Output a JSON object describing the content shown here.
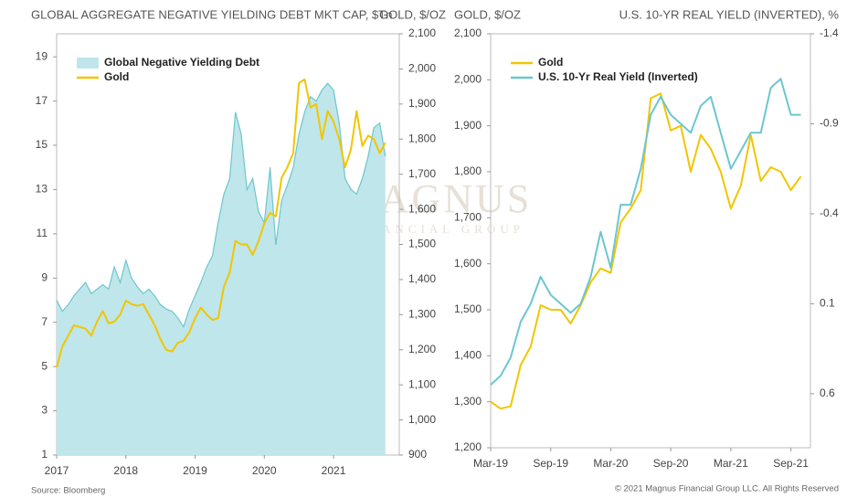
{
  "chart_data": [
    {
      "type": "line",
      "title": "GLOBAL AGGREGATE NEGATIVE YIELDING DEBT MKT CAP, $Tn",
      "y2_title": "GOLD, $/OZ",
      "x": [
        2017,
        2017.083,
        2017.167,
        2017.25,
        2017.333,
        2017.417,
        2017.5,
        2017.583,
        2017.667,
        2017.75,
        2017.833,
        2017.917,
        2018,
        2018.083,
        2018.167,
        2018.25,
        2018.333,
        2018.417,
        2018.5,
        2018.583,
        2018.667,
        2018.75,
        2018.833,
        2018.917,
        2019,
        2019.083,
        2019.167,
        2019.25,
        2019.333,
        2019.417,
        2019.5,
        2019.583,
        2019.667,
        2019.75,
        2019.833,
        2019.917,
        2020,
        2020.083,
        2020.167,
        2020.25,
        2020.333,
        2020.417,
        2020.5,
        2020.583,
        2020.667,
        2020.75,
        2020.833,
        2020.917,
        2021,
        2021.083,
        2021.167,
        2021.25,
        2021.333,
        2021.417,
        2021.5,
        2021.583,
        2021.667,
        2021.75
      ],
      "xlim": [
        2017,
        2021.95
      ],
      "xticks": [
        2017,
        2018,
        2019,
        2020,
        2021
      ],
      "ylim": [
        1,
        20.04
      ],
      "yticks": [
        1,
        3,
        5,
        7,
        9,
        11,
        13,
        15,
        17,
        19
      ],
      "y2lim": [
        900,
        2100
      ],
      "y2ticks": [
        900,
        {
          "value": 1000,
          "label": "1,000"
        },
        {
          "value": 1100,
          "label": "1,100"
        },
        {
          "value": 1200,
          "label": "1,200"
        },
        {
          "value": 1300,
          "label": "1,300"
        },
        {
          "value": 1400,
          "label": "1,400"
        },
        {
          "value": 1500,
          "label": "1,500"
        },
        {
          "value": 1600,
          "label": "1,600"
        },
        {
          "value": 1700,
          "label": "1,700"
        },
        {
          "value": 1800,
          "label": "1,800"
        },
        {
          "value": 1900,
          "label": "1,900"
        },
        {
          "value": 2000,
          "label": "2,000"
        },
        {
          "value": 2100,
          "label": "2,100"
        }
      ],
      "legend": "upper left",
      "watermark": "MAGNUS",
      "watermark_sub": "FINANCIAL GROUP",
      "series": [
        {
          "name": "Global Negative Yielding Debt",
          "color": "#bfe6ea",
          "fill": true,
          "axis": "y",
          "values": [
            8,
            7.5,
            7.8,
            8.2,
            8.5,
            8.8,
            8.3,
            8.5,
            8.7,
            8.5,
            9.5,
            8.8,
            9.8,
            9.0,
            8.6,
            8.3,
            8.5,
            8.2,
            7.8,
            7.6,
            7.5,
            7.2,
            6.8,
            7.6,
            8.2,
            8.8,
            9.5,
            10.0,
            11.5,
            12.8,
            13.5,
            16.5,
            15.5,
            13.0,
            13.5,
            12.0,
            11.5,
            14.0,
            10.5,
            12.5,
            13.2,
            14.0,
            15.5,
            16.5,
            17.2,
            17.0,
            17.5,
            17.8,
            17.5,
            16.0,
            13.5,
            13.0,
            12.8,
            13.5,
            14.5,
            15.8,
            16.0,
            14.5
          ]
        },
        {
          "name": "Gold",
          "color": "#f2c500",
          "fill": false,
          "axis": "y2",
          "values": [
            1150,
            1210,
            1240,
            1270,
            1265,
            1260,
            1240,
            1280,
            1310,
            1275,
            1280,
            1300,
            1340,
            1330,
            1325,
            1330,
            1300,
            1270,
            1230,
            1200,
            1195,
            1220,
            1225,
            1250,
            1290,
            1320,
            1300,
            1285,
            1290,
            1380,
            1420,
            1510,
            1500,
            1500,
            1470,
            1510,
            1560,
            1590,
            1580,
            1690,
            1720,
            1760,
            1960,
            1970,
            1890,
            1900,
            1800,
            1880,
            1850,
            1800,
            1720,
            1770,
            1880,
            1780,
            1810,
            1800,
            1760,
            1790
          ]
        }
      ]
    },
    {
      "type": "line",
      "y_title": "GOLD, $/OZ",
      "y2_title": "U.S. 10-YR REAL YIELD (INVERTED), %",
      "x": [
        2019.167,
        2019.25,
        2019.333,
        2019.417,
        2019.5,
        2019.583,
        2019.667,
        2019.75,
        2019.833,
        2019.917,
        2020,
        2020.083,
        2020.167,
        2020.25,
        2020.333,
        2020.417,
        2020.5,
        2020.583,
        2020.667,
        2020.75,
        2020.833,
        2020.917,
        2021,
        2021.083,
        2021.167,
        2021.25,
        2021.333,
        2021.417,
        2021.5,
        2021.583,
        2021.667,
        2021.75
      ],
      "xlim": [
        2019.167,
        2021.83
      ],
      "xticks": [
        {
          "value": 2019.167,
          "label": "Mar-19"
        },
        {
          "value": 2019.667,
          "label": "Sep-19"
        },
        {
          "value": 2020.167,
          "label": "Mar-20"
        },
        {
          "value": 2020.667,
          "label": "Sep-20"
        },
        {
          "value": 2021.167,
          "label": "Mar-21"
        },
        {
          "value": 2021.667,
          "label": "Sep-21"
        }
      ],
      "ylim": [
        1200,
        2100
      ],
      "yticks": [
        {
          "value": 1200,
          "label": "1,200"
        },
        {
          "value": 1300,
          "label": "1,300"
        },
        {
          "value": 1400,
          "label": "1,400"
        },
        {
          "value": 1500,
          "label": "1,500"
        },
        {
          "value": 1600,
          "label": "1,600"
        },
        {
          "value": 1700,
          "label": "1,700"
        },
        {
          "value": 1800,
          "label": "1,800"
        },
        {
          "value": 1900,
          "label": "1,900"
        },
        {
          "value": 2000,
          "label": "2,000"
        },
        {
          "value": 2100,
          "label": "2,100"
        }
      ],
      "y2lim": [
        0.9,
        -1.4
      ],
      "y2ticks": [
        -1.4,
        -0.9,
        -0.4,
        0.1,
        0.6
      ],
      "legend": "upper left",
      "series": [
        {
          "name": "Gold",
          "color": "#f2c500",
          "fill": false,
          "axis": "y",
          "values": [
            1300,
            1285,
            1290,
            1380,
            1420,
            1510,
            1500,
            1500,
            1470,
            1510,
            1560,
            1590,
            1580,
            1690,
            1720,
            1760,
            1960,
            1970,
            1890,
            1900,
            1800,
            1880,
            1850,
            1800,
            1720,
            1770,
            1880,
            1780,
            1810,
            1800,
            1760,
            1790
          ]
        },
        {
          "name": "U.S. 10-Yr Real Yield (Inverted)",
          "color": "#6cc6cf",
          "fill": false,
          "axis": "y2",
          "values": [
            0.55,
            0.5,
            0.4,
            0.2,
            0.1,
            -0.05,
            0.05,
            0.1,
            0.15,
            0.1,
            -0.05,
            -0.3,
            -0.1,
            -0.45,
            -0.45,
            -0.65,
            -0.95,
            -1.05,
            -0.95,
            -0.9,
            -0.85,
            -1.0,
            -1.05,
            -0.85,
            -0.65,
            -0.75,
            -0.85,
            -0.85,
            -1.1,
            -1.15,
            -0.95,
            -0.95
          ]
        }
      ]
    }
  ],
  "footer": {
    "source": "Source: Bloomberg",
    "copyright": "© 2021 Magnus Financial Group LLC. All Rights Reserved"
  }
}
